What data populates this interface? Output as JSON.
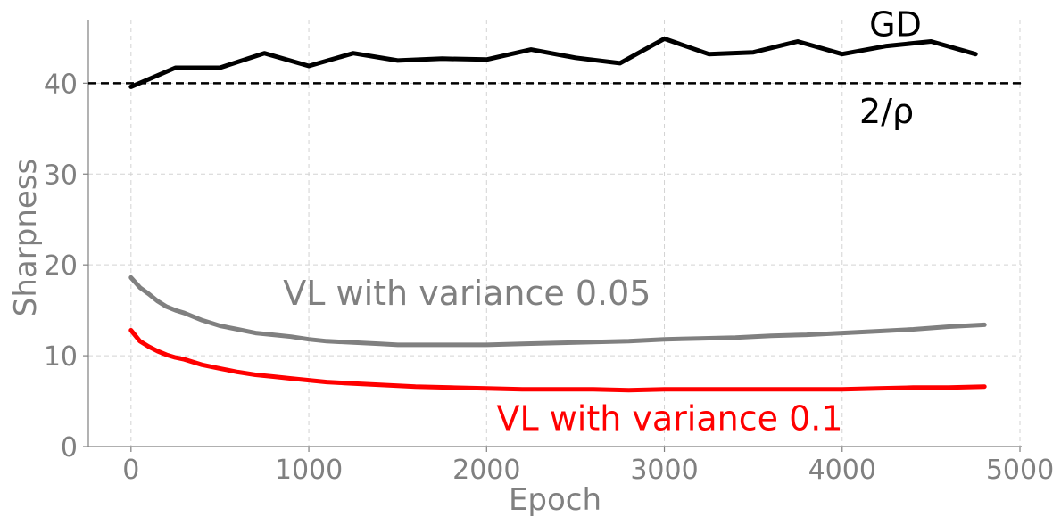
{
  "chart_data": {
    "type": "line",
    "xlabel": "Epoch",
    "ylabel": "Sharpness",
    "xlim": [
      -240,
      5010
    ],
    "ylim": [
      0,
      47
    ],
    "xticks": [
      0,
      1000,
      2000,
      3000,
      4000,
      5000
    ],
    "xtick_labels": [
      "0",
      "1000",
      "2000",
      "3000",
      "4000",
      "5000"
    ],
    "yticks": [
      0,
      10,
      20,
      30,
      40
    ],
    "ytick_labels": [
      "0",
      "10",
      "20",
      "30",
      "40"
    ],
    "grid": true,
    "reference_line": {
      "label": "2/ρ",
      "y": 40,
      "color": "#000000",
      "style": "dashed"
    },
    "series": [
      {
        "name": "GD",
        "color": "#000000",
        "x": [
          0,
          250,
          500,
          750,
          1000,
          1250,
          1500,
          1750,
          2000,
          2250,
          2500,
          2750,
          3000,
          3250,
          3500,
          3750,
          4000,
          4250,
          4500,
          4750
        ],
        "y": [
          39.6,
          41.7,
          41.7,
          43.3,
          41.9,
          43.3,
          42.5,
          42.7,
          42.6,
          43.7,
          42.8,
          42.2,
          44.9,
          43.2,
          43.4,
          44.6,
          43.2,
          44.1,
          44.6,
          43.2
        ]
      },
      {
        "name": "VL with variance 0.05",
        "color": "#808080",
        "x": [
          0,
          50,
          100,
          150,
          200,
          250,
          300,
          400,
          500,
          600,
          700,
          800,
          900,
          1000,
          1100,
          1200,
          1300,
          1400,
          1500,
          1600,
          1800,
          2000,
          2200,
          2400,
          2600,
          2800,
          3000,
          3200,
          3400,
          3600,
          3800,
          4000,
          4200,
          4400,
          4600,
          4800
        ],
        "y": [
          18.6,
          17.5,
          16.8,
          16.0,
          15.4,
          15.0,
          14.7,
          13.9,
          13.3,
          12.9,
          12.5,
          12.3,
          12.1,
          11.8,
          11.6,
          11.5,
          11.4,
          11.3,
          11.2,
          11.2,
          11.2,
          11.2,
          11.3,
          11.4,
          11.5,
          11.6,
          11.8,
          11.9,
          12.0,
          12.2,
          12.3,
          12.5,
          12.7,
          12.9,
          13.2,
          13.4
        ]
      },
      {
        "name": "VL with variance 0.1",
        "color": "#ff0000",
        "x": [
          0,
          50,
          100,
          150,
          200,
          250,
          300,
          400,
          500,
          600,
          700,
          800,
          900,
          1000,
          1100,
          1200,
          1300,
          1400,
          1500,
          1600,
          1800,
          2000,
          2200,
          2400,
          2600,
          2800,
          3000,
          3200,
          3400,
          3600,
          3800,
          4000,
          4200,
          4400,
          4600,
          4800
        ],
        "y": [
          12.8,
          11.6,
          11.0,
          10.5,
          10.1,
          9.8,
          9.6,
          9.0,
          8.6,
          8.2,
          7.9,
          7.7,
          7.5,
          7.3,
          7.1,
          7.0,
          6.9,
          6.8,
          6.7,
          6.6,
          6.5,
          6.4,
          6.3,
          6.3,
          6.3,
          6.2,
          6.3,
          6.3,
          6.3,
          6.3,
          6.3,
          6.3,
          6.4,
          6.5,
          6.5,
          6.6
        ]
      }
    ],
    "annotations": [
      {
        "text": "GD",
        "color": "#000000",
        "x": 4300,
        "y": 45.2
      },
      {
        "text": "2/ρ",
        "color": "#000000",
        "x": 4250,
        "y": 35.6
      },
      {
        "text": "VL with variance 0.05",
        "color": "#808080",
        "x": 1890,
        "y": 15.6
      },
      {
        "text": "VL with variance 0.1",
        "color": "#ff0000",
        "x": 3030,
        "y": 1.8
      }
    ]
  }
}
